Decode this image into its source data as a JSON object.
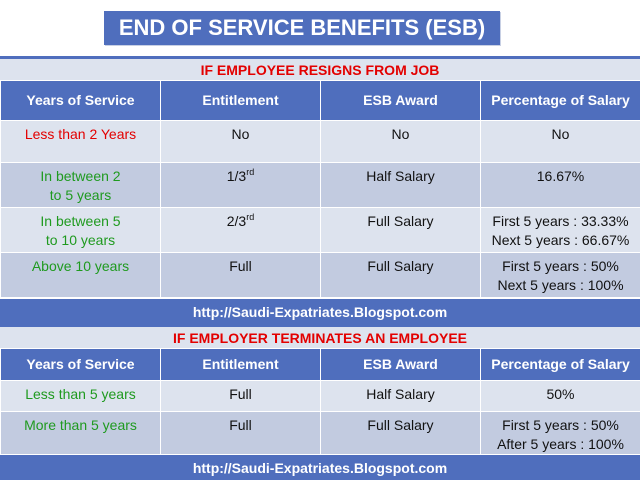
{
  "title": "END OF SERVICE BENEFITS (ESB)",
  "section1": {
    "heading": "IF EMPLOYEE RESIGNS FROM JOB",
    "headers": [
      "Years of Service",
      "Entitlement",
      "ESB Award",
      "Percentage of Salary"
    ],
    "rows": [
      {
        "service": "Less than 2 Years",
        "service_color": "red",
        "ent": "No",
        "ent_sup": "",
        "award": "No",
        "pct": [
          "No"
        ]
      },
      {
        "service": "In between 2 to 5 years",
        "service_color": "green",
        "ent": "1/3",
        "ent_sup": "rd",
        "award": "Half Salary",
        "pct": [
          "16.67%"
        ]
      },
      {
        "service": "In between 5 to 10 years",
        "service_color": "green",
        "ent": "2/3",
        "ent_sup": "rd",
        "award": "Full Salary",
        "pct": [
          "First 5 years : 33.33%",
          "Next 5 years : 66.67%"
        ]
      },
      {
        "service": "Above 10 years",
        "service_color": "green",
        "ent": "Full",
        "ent_sup": "",
        "award": "Full Salary",
        "pct": [
          "First 5 years : 50%",
          "Next 5 years : 100%"
        ]
      }
    ],
    "footer": "http://Saudi-Expatriates.Blogspot.com"
  },
  "section2": {
    "heading": "IF EMPLOYER TERMINATES AN EMPLOYEE",
    "headers": [
      "Years of Service",
      "Entitlement",
      "ESB Award",
      "Percentage of Salary"
    ],
    "rows": [
      {
        "service": "Less than 5 years",
        "service_color": "green",
        "ent": "Full",
        "ent_sup": "",
        "award": "Half Salary",
        "pct": [
          "50%"
        ]
      },
      {
        "service": "More than 5 years",
        "service_color": "green",
        "ent": "Full",
        "ent_sup": "",
        "award": "Full Salary",
        "pct": [
          "First 5 years : 50%",
          "After 5 years : 100%"
        ]
      }
    ],
    "footer": "http://Saudi-Expatriates.Blogspot.com"
  },
  "colors": {
    "header_blue": "#4f6ebd",
    "light_row": "#dde3ee",
    "dark_row": "#c2cbe0",
    "red_text": "#e30000",
    "green_text": "#1f9a1f"
  }
}
